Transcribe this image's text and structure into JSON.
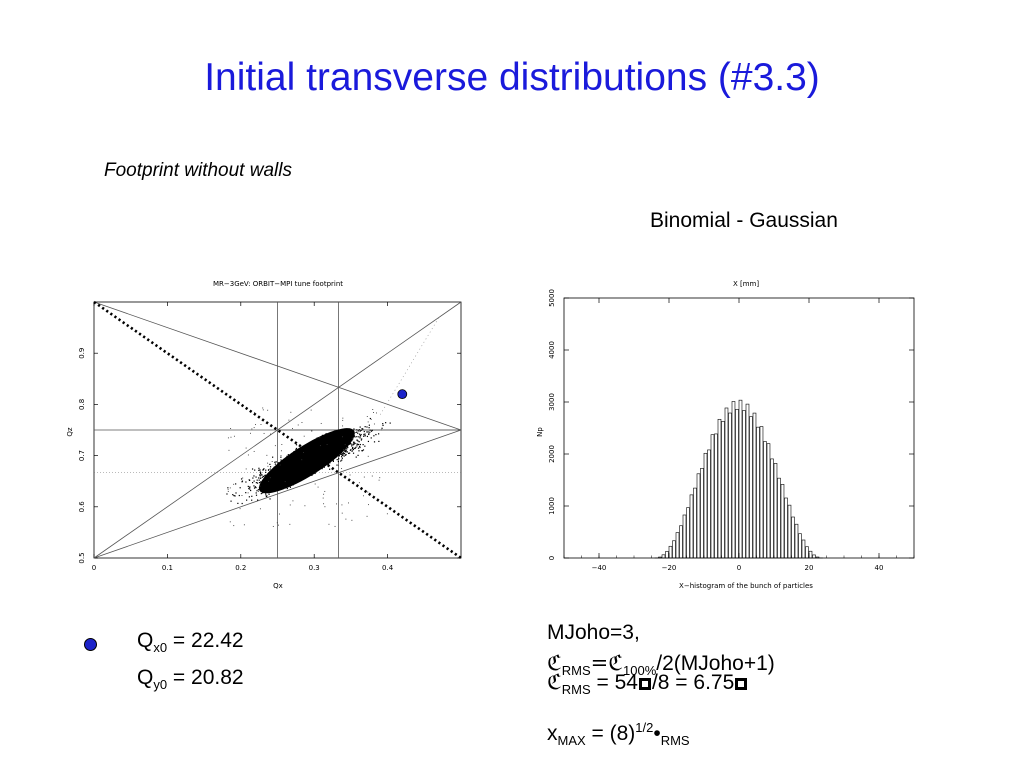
{
  "page": {
    "title": "Initial transverse distributions (#3.3)",
    "subtitle": "Footprint without walls",
    "right_label": "Binomial - Gaussian"
  },
  "tunes": {
    "qx_symbol": "Q",
    "qx_sub": "x0",
    "qx_value": "= 22.42",
    "qy_symbol": "Q",
    "qy_sub": "y0",
    "qy_value": "= 20.82",
    "marker_color": "#1c23c9"
  },
  "formulas": {
    "line1": "MJoho=3,",
    "line2_a": "ℭ",
    "line2_sub1": "RMS",
    "line2_b": "=ℭ",
    "line2_sub2": "100%",
    "line2_c": "/2(MJoho+1)",
    "line3_a": "ℭ",
    "line3_sub": "RMS",
    "line3_b": " = 54",
    "line3_c": "/8 = 6.75",
    "line4_a": "x",
    "line4_sub": "MAX",
    "line4_b": " = (8)",
    "line4_sup": "1/2",
    "line4_c": "•",
    "line4_sub2": "RMS"
  },
  "chart_data": [
    {
      "type": "scatter",
      "title": "MR−3GeV: ORBIT−MPI tune footprint",
      "xlabel": "Qx",
      "ylabel": "Qz",
      "xlim": [
        0,
        0.5
      ],
      "ylim": [
        0.5,
        1.0
      ],
      "x_ticks": [
        "0",
        "0.1",
        "0.2",
        "0.3",
        "0.4"
      ],
      "y_ticks": [
        "0.5",
        "0.6",
        "0.7",
        "0.8",
        "0.9"
      ],
      "cloud": {
        "center": [
          0.29,
          0.69
        ],
        "extent_x": [
          0.2,
          0.39
        ],
        "extent_y": [
          0.59,
          0.78
        ]
      },
      "resonance_lines_note": "integer/third-order lines",
      "vertical_lines": [
        0.25,
        0.333
      ],
      "horizontal_lines": [
        0.75
      ],
      "dotted_horizontal": [
        0.667
      ],
      "diagonal_dotted": [
        [
          0,
          1.0
        ],
        [
          0.5,
          0.5
        ]
      ],
      "marker": {
        "x": 0.42,
        "y": 0.82,
        "color": "#1c23c9"
      }
    },
    {
      "type": "bar",
      "title": "X [mm]",
      "xlabel": "X−histogram of the bunch of particles",
      "ylabel": "Np",
      "xlim": [
        -50,
        50
      ],
      "ylim": [
        0,
        5000
      ],
      "x_ticks": [
        "−40",
        "−20",
        "0",
        "20",
        "40"
      ],
      "y_ticks": [
        "0",
        "1000",
        "2000",
        "3000",
        "4000",
        "5000"
      ],
      "bin_width": 1,
      "peak": 2950,
      "support": [
        -24,
        24
      ]
    }
  ]
}
